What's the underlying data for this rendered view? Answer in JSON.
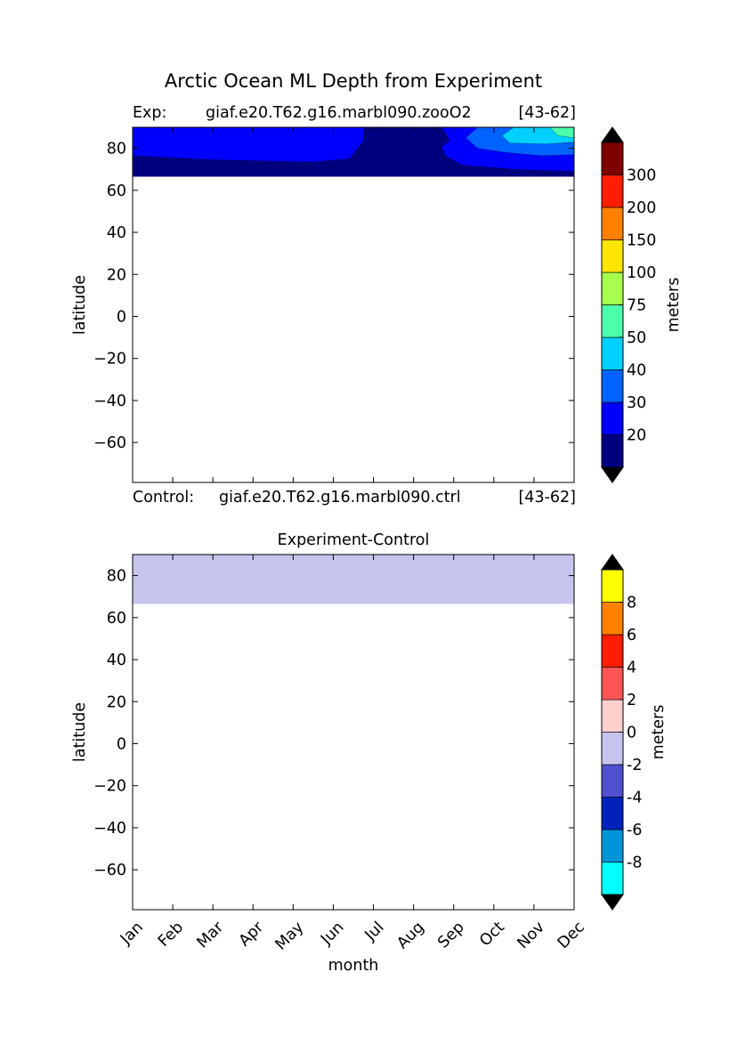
{
  "figure": {
    "title": "Arctic Ocean ML Depth from Experiment"
  },
  "chart_data": [
    {
      "type": "heatmap",
      "header": {
        "left": "Exp:",
        "center": "giaf.e20.T62.g16.marbl090.zooO2",
        "right": "[43-62]"
      },
      "footer": {
        "left": "Control:",
        "center": "giaf.e20.T62.g16.marbl090.ctrl",
        "right": "[43-62]"
      },
      "ylabel": "latitude",
      "xlim": [
        0,
        11
      ],
      "ylim": [
        -79,
        90
      ],
      "yticks": [
        80,
        60,
        40,
        20,
        0,
        -20,
        -40,
        -60
      ],
      "ytick_labels": [
        "80",
        "60",
        "40",
        "20",
        "0",
        "−20",
        "−40",
        "−60"
      ],
      "data_lat_range": [
        66.5,
        90
      ],
      "colorbar": {
        "label": "meters",
        "levels": [
          "20",
          "30",
          "40",
          "50",
          "75",
          "100",
          "150",
          "200",
          "300"
        ],
        "colors": [
          "#00007f",
          "#0000ff",
          "#0062ff",
          "#00d0ff",
          "#4cffaa",
          "#a5ff4c",
          "#ffe500",
          "#ff8000",
          "#ff1e00",
          "#7f0000"
        ],
        "extend_colors": {
          "under": "#000000",
          "over": "#000000"
        }
      },
      "fields": [
        {
          "band": 5,
          "polygon": [
            [
              1.0,
              90
            ],
            [
              1.05,
              85.5
            ],
            [
              1.7,
              83.8
            ],
            [
              3.0,
              84.2
            ],
            [
              3.95,
              85.5
            ],
            [
              4.05,
              90
            ]
          ]
        },
        {
          "band": 4,
          "polygon": [
            [
              0,
              90
            ],
            [
              0,
              84
            ],
            [
              0.6,
              82.5
            ],
            [
              1.7,
              81.5
            ],
            [
              3.5,
              80.7
            ],
            [
              4.6,
              81.5
            ],
            [
              4.9,
              84.5
            ],
            [
              4.95,
              90
            ]
          ]
        },
        {
          "band": 3,
          "polygon": [
            [
              0,
              90
            ],
            [
              0,
              82
            ],
            [
              1.7,
              79.5
            ],
            [
              4.5,
              77.8
            ],
            [
              4.95,
              79.0
            ],
            [
              5.15,
              85.5
            ],
            [
              5.25,
              90
            ]
          ]
        },
        {
          "band": 2,
          "polygon": [
            [
              0,
              90
            ],
            [
              0,
              80.5
            ],
            [
              1.7,
              77.8
            ],
            [
              4.6,
              75.8
            ],
            [
              5.2,
              77.8
            ],
            [
              5.5,
              85.5
            ],
            [
              5.5,
              90
            ]
          ]
        },
        {
          "band": 1,
          "polygon": [
            [
              0,
              90
            ],
            [
              0,
              76.5
            ],
            [
              2.0,
              74.5
            ],
            [
              4.5,
              73.5
            ],
            [
              5.4,
              75.0
            ],
            [
              5.75,
              83.5
            ],
            [
              5.75,
              90
            ]
          ]
        },
        {
          "band": 1,
          "polygon": [
            [
              11,
              90
            ],
            [
              11,
              69.0
            ],
            [
              9.5,
              70.0
            ],
            [
              8.2,
              72.0
            ],
            [
              7.8,
              76.5
            ],
            [
              7.7,
              80.5
            ],
            [
              7.9,
              84.0
            ],
            [
              7.7,
              90
            ]
          ]
        },
        {
          "band": 2,
          "polygon": [
            [
              11,
              90
            ],
            [
              11,
              77.0
            ],
            [
              10.2,
              76.5
            ],
            [
              9.3,
              78.0
            ],
            [
              8.6,
              80.0
            ],
            [
              8.3,
              85.0
            ],
            [
              8.6,
              90
            ]
          ]
        },
        {
          "band": 3,
          "polygon": [
            [
              11,
              90
            ],
            [
              11,
              83.0
            ],
            [
              10.3,
              82.0
            ],
            [
              9.4,
              82.5
            ],
            [
              9.2,
              86.0
            ],
            [
              9.5,
              90
            ]
          ]
        },
        {
          "band": 4,
          "polygon": [
            [
              11,
              90
            ],
            [
              11,
              85.0
            ],
            [
              10.6,
              86.0
            ],
            [
              10.4,
              90
            ]
          ]
        }
      ]
    },
    {
      "type": "heatmap",
      "title": "Experiment-Control",
      "xlabel": "month",
      "ylabel": "latitude",
      "xlim": [
        0,
        11
      ],
      "ylim": [
        -79,
        90
      ],
      "categories": [
        "Jan",
        "Feb",
        "Mar",
        "Apr",
        "May",
        "Jun",
        "Jul",
        "Aug",
        "Sep",
        "Oct",
        "Nov",
        "Dec"
      ],
      "yticks": [
        80,
        60,
        40,
        20,
        0,
        -20,
        -40,
        -60
      ],
      "ytick_labels": [
        "80",
        "60",
        "40",
        "20",
        "0",
        "−20",
        "−40",
        "−60"
      ],
      "data_lat_range": [
        66.5,
        90
      ],
      "colorbar": {
        "label": "meters",
        "levels": [
          "-8",
          "-6",
          "-4",
          "-2",
          "0",
          "2",
          "4",
          "6",
          "8"
        ],
        "colors": [
          "#00ffff",
          "#0094d8",
          "#0022bb",
          "#5050cf",
          "#c5c5ee",
          "#ffcfcf",
          "#ff5555",
          "#ff1e00",
          "#ff8000",
          "#ffff00"
        ],
        "extend_colors": {
          "under": "#000000",
          "over": "#000000"
        }
      },
      "fields": [
        {
          "band": 4,
          "polygon": [
            [
              0,
              90
            ],
            [
              0,
              66.5
            ],
            [
              11,
              66.5
            ],
            [
              11,
              90
            ]
          ]
        }
      ]
    }
  ]
}
